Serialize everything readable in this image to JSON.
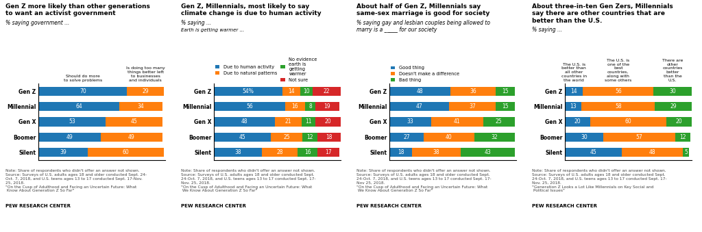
{
  "chart_data": [
    {
      "type": "bar",
      "orientation": "horizontal",
      "stacked": true,
      "data_labels": true,
      "tick_labels": "y",
      "title": "Gen Z more likely than other generations\nto want an activist government",
      "subtitle": "% saying government ...",
      "categories": [
        "Gen Z",
        "Millennial",
        "Gen X",
        "Boomer",
        "Silent"
      ],
      "series": [
        {
          "name": "Should do more\nto solve problems",
          "values": [
            70,
            64,
            53,
            49,
            39
          ]
        },
        {
          "name": "Is doing too many\nthings better left\nto businesses\nand individuals",
          "values": [
            29,
            34,
            45,
            49,
            60
          ]
        }
      ],
      "xlim": [
        0,
        100
      ],
      "annotations": [
        "Note: Share of respondents who didn't offer an answer not shown.\nSource: Surveys of U.S. adults ages 18 and older conducted Sept. 24-\nOct. 7, 2018, and U.S. teens ages 13 to 17 conducted Sept. 17-Nov.\n25, 2018.\n\"On the Cusp of Adulthood and Facing an Uncertain Future: What\n Know About Generation Z So Far\"",
        "PEW RESEARCH CENTER"
      ]
    },
    {
      "type": "bar",
      "orientation": "horizontal",
      "stacked": true,
      "data_labels": true,
      "tick_labels": "y",
      "legend": "lower left",
      "title": "Gen Z, Millennials, most likely to say\nclimate change is due to human activity",
      "subtitle": "% saying ...",
      "categories": [
        "Gen Z",
        "Millennial",
        "Gen X",
        "Boomer",
        "Silent"
      ],
      "series": [
        {
          "name": "Due to human activity",
          "values": [
            54,
            56,
            48,
            45,
            38
          ],
          "value_labels": [
            "54%",
            "56",
            "48",
            "45",
            "38"
          ]
        },
        {
          "name": "Due to natural patterns",
          "values": [
            14,
            16,
            21,
            25,
            28
          ]
        },
        {
          "name": "No evidence\nearth is\ngetting\nwarmer",
          "values": [
            10,
            8,
            11,
            12,
            16
          ]
        },
        {
          "name": "Not sure",
          "values": [
            22,
            19,
            20,
            18,
            17
          ]
        }
      ],
      "xlim": [
        0,
        100
      ],
      "annotations": [
        "Earth is getting warmer ...",
        "Note: Share of respondents who didn't offer an answer not shown.\nSource: Surveys of U.S. adults ages 18 and older conducted Sept.\n24-Oct. 7, 2018, and U.S. teens ages 13 to 17 conducted Sept. 17-\nNov. 25, 2018.\n\"On the Cusp of Adulthood and Facing an Uncertain Future: What\n We Know About Generation Z So Far\"",
        "PEW RESEARCH CENTER"
      ]
    },
    {
      "type": "bar",
      "orientation": "horizontal",
      "stacked": true,
      "data_labels": true,
      "tick_labels": "y",
      "legend": "lower left",
      "title": "About half of Gen Z, Millennials say\nsame-sex marriage is good for society",
      "subtitle": "% saying gay and lesbian couples being allowed to\nmarry is a _____ for our society",
      "categories": [
        "Gen Z",
        "Millennial",
        "Gen X",
        "Boomer",
        "Silent"
      ],
      "series": [
        {
          "name": "Good thing",
          "values": [
            48,
            47,
            33,
            27,
            18
          ]
        },
        {
          "name": "Doesn't make a difference",
          "values": [
            36,
            37,
            41,
            40,
            38
          ]
        },
        {
          "name": "Bad thing",
          "values": [
            15,
            15,
            25,
            32,
            43
          ]
        }
      ],
      "xlim": [
        0,
        100
      ],
      "annotations": [
        "Note: Share of respondents who didn't offer an answer not shown.\nSource: Surveys of U.S. adults ages 18 and older conducted Sept.\n24-Oct. 7, 2018, and U.S. teens ages 13 to 17 conducted Sept. 17-\nNov 25, 2018.\n\"On the Cusp of Adulthood and Facing an Uncertain Future: What\n We Know About Generation Z So Far\"",
        "PEW RESEARCH CENTER"
      ]
    },
    {
      "type": "bar",
      "orientation": "horizontal",
      "stacked": true,
      "data_labels": true,
      "tick_labels": "y",
      "title": "About three-in-ten Gen Zers, Millennials\nsay there are other countries that are\nbetter than the U.S.",
      "subtitle": "% saying ...",
      "categories": [
        "Gen Z",
        "Millennial",
        "Gen X",
        "Boomer",
        "Silent"
      ],
      "series": [
        {
          "name": "The U.S. is\nbetter than\nall other\ncountries in\nthe world",
          "values": [
            14,
            13,
            20,
            30,
            45
          ]
        },
        {
          "name": "The U.S. is\none of the\nbest\ncountries,\nalong with\nsome others",
          "values": [
            56,
            58,
            60,
            57,
            48
          ]
        },
        {
          "name": "There are\nother\ncountries\nbetter\nthan the\nU.S.",
          "values": [
            30,
            29,
            20,
            12,
            5
          ]
        }
      ],
      "xlim": [
        0,
        100
      ],
      "annotations": [
        "Note: Share of respondents who didn't offer an answer not shown.\nSource: Surveys of U.S. adults ages 18 and older conducted Sept.\n24-Oct. 7, 2018, and U.S. teens ages 13 to 17 conducted Sept. 17-\nNov. 25, 2018.\n\"Generation Z Looks a Lot Like Millennials on Key Social and\n Political Issues\"",
        "PEW RESEARCH CENTER"
      ]
    }
  ]
}
